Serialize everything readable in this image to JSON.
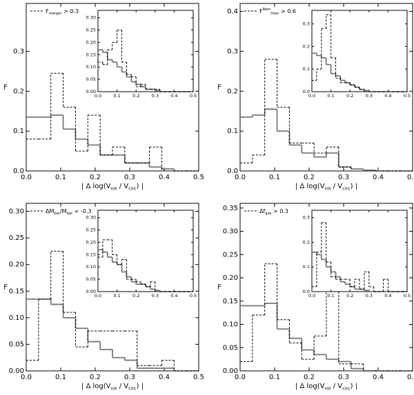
{
  "chart_data": [
    {
      "type": "histogram",
      "ylabel": "F",
      "xlabel": [
        {
          "text": "| Δ log(V"
        },
        {
          "text": "rot",
          "shift": "sub"
        },
        {
          "text": " / V"
        },
        {
          "text": "circ",
          "shift": "sub"
        },
        {
          "text": ") |"
        }
      ],
      "legend": [
        {
          "text": "F"
        },
        {
          "text": "merger",
          "shift": "sub"
        },
        {
          "text": " > 0.3"
        }
      ],
      "bins": [
        0,
        0.0357,
        0.0714,
        0.1071,
        0.1429,
        0.1786,
        0.2143,
        0.25,
        0.2857,
        0.3214,
        0.3571,
        0.3929,
        0.4286,
        0.4643,
        0.5
      ],
      "series": [
        {
          "color": "#777777",
          "dash": false,
          "values": [
            0.135,
            0.135,
            0.14,
            0.105,
            0.08,
            0.065,
            0.04,
            0.04,
            0.02,
            0.02,
            0.01,
            0.005,
            0,
            0
          ]
        },
        {
          "color": "#000000",
          "dash": true,
          "values": [
            0.08,
            0.08,
            0.245,
            0.16,
            0.05,
            0.14,
            0.04,
            0.06,
            0.02,
            0.02,
            0.06,
            0,
            0,
            0
          ]
        }
      ],
      "xlim": [
        0,
        0.5
      ],
      "ylim": [
        0,
        0.42
      ],
      "xticks": [
        {
          "value": 0,
          "label": "0.0"
        },
        0.1,
        0.2,
        0.3,
        0.4,
        0.5
      ],
      "yticks": [
        {
          "value": 0,
          "label": "0.0"
        },
        0.1,
        0.2,
        0.3
      ],
      "inset": {
        "bins": [
          0,
          0.025,
          0.05,
          0.075,
          0.1,
          0.125,
          0.15,
          0.175,
          0.2,
          0.225,
          0.25,
          0.275,
          0.3,
          0.325,
          0.35,
          0.375,
          0.4,
          0.425,
          0.45,
          0.475,
          0.5
        ],
        "series": [
          {
            "color": "#777777",
            "dash": false,
            "values": [
              0.17,
              0.16,
              0.13,
              0.12,
              0.1,
              0.08,
              0.06,
              0.04,
              0.03,
              0.02,
              0.01,
              0.01,
              0.005,
              0,
              0,
              0,
              0,
              0,
              0,
              0
            ]
          },
          {
            "color": "#000000",
            "dash": true,
            "values": [
              0.12,
              0.11,
              0.17,
              0.2,
              0.25,
              0.12,
              0.07,
              0.06,
              0.02,
              0.03,
              0.01,
              0.01,
              0.01,
              0,
              0,
              0,
              0,
              0,
              0,
              0
            ]
          }
        ],
        "xlim": [
          0,
          0.5
        ],
        "ylim": [
          0,
          0.33
        ],
        "xticks": [
          {
            "value": 0,
            "label": "0.0"
          },
          0.1,
          0.2,
          0.3,
          0.4,
          0.5
        ],
        "yticks": [
          {
            "value": 0,
            "label": "0.00"
          },
          0.05,
          {
            "value": 0.1,
            "label": "0.10"
          },
          0.15,
          {
            "value": 0.2,
            "label": "0.20"
          },
          0.25,
          {
            "value": 0.3,
            "label": "0.30"
          }
        ]
      }
    },
    {
      "type": "histogram",
      "ylabel": "F",
      "xlabel": [
        {
          "text": "| Δ log(V"
        },
        {
          "text": "rot",
          "shift": "sub"
        },
        {
          "text": " / V"
        },
        {
          "text": "circ",
          "shift": "sub"
        },
        {
          "text": ") |"
        }
      ],
      "legend": [
        {
          "text": "F"
        },
        {
          "text": "Rem",
          "shift": "sup"
        },
        {
          "text": "Inter",
          "shift": "sub"
        },
        {
          "text": " > 0.6"
        }
      ],
      "bins": [
        0,
        0.0357,
        0.0714,
        0.1071,
        0.1429,
        0.1786,
        0.2143,
        0.25,
        0.2857,
        0.3214,
        0.3571,
        0.3929,
        0.4286,
        0.4643,
        0.5
      ],
      "series": [
        {
          "color": "#777777",
          "dash": false,
          "values": [
            0.135,
            0.14,
            0.155,
            0.1,
            0.065,
            0.045,
            0.035,
            0.045,
            0.01,
            0.005,
            0.002,
            0,
            0,
            0
          ]
        },
        {
          "color": "#000000",
          "dash": true,
          "values": [
            0.02,
            0.04,
            0.28,
            0.16,
            0.07,
            0.07,
            0.045,
            0.06,
            0.01,
            0,
            0,
            0,
            0,
            0
          ]
        }
      ],
      "xlim": [
        0,
        0.5
      ],
      "ylim": [
        0,
        0.42
      ],
      "xticks": [
        {
          "value": 0,
          "label": "0.0"
        },
        0.1,
        0.2,
        0.3,
        0.4,
        0.5
      ],
      "yticks": [
        {
          "value": 0,
          "label": "0.0"
        },
        0.1,
        0.2,
        0.3,
        0.4
      ],
      "inset": {
        "bins": [
          0,
          0.025,
          0.05,
          0.075,
          0.1,
          0.125,
          0.15,
          0.175,
          0.2,
          0.225,
          0.25,
          0.275,
          0.3,
          0.325,
          0.35,
          0.375,
          0.4,
          0.425,
          0.45,
          0.475,
          0.5
        ],
        "series": [
          {
            "color": "#777777",
            "dash": false,
            "values": [
              0.17,
              0.16,
              0.15,
              0.12,
              0.08,
              0.07,
              0.05,
              0.04,
              0.03,
              0.02,
              0.01,
              0.005,
              0,
              0,
              0,
              0,
              0,
              0,
              0,
              0
            ]
          },
          {
            "color": "#000000",
            "dash": true,
            "values": [
              0.05,
              0.1,
              0.28,
              0.34,
              0.15,
              0.06,
              0.04,
              0.04,
              0.03,
              0.02,
              0.01,
              0,
              0,
              0,
              0,
              0,
              0,
              0,
              0,
              0
            ]
          }
        ],
        "xlim": [
          0,
          0.5
        ],
        "ylim": [
          0,
          0.36
        ],
        "xticks": [
          {
            "value": 0,
            "label": "0.0"
          },
          0.1,
          0.2,
          0.3,
          0.4,
          0.5
        ],
        "yticks": [
          {
            "value": 0,
            "label": "0.0"
          },
          0.1,
          0.2,
          0.3
        ]
      }
    },
    {
      "type": "histogram",
      "ylabel": "F",
      "xlabel": [
        {
          "text": "| Δ log(V"
        },
        {
          "text": "rot",
          "shift": "sub"
        },
        {
          "text": " / V"
        },
        {
          "text": "circ",
          "shift": "sub"
        },
        {
          "text": ") |"
        }
      ],
      "legend": [
        {
          "text": "ΔM"
        },
        {
          "text": "bar",
          "shift": "sub"
        },
        {
          "text": "/M"
        },
        {
          "text": "bar",
          "shift": "sub"
        },
        {
          "text": " < -0.3"
        }
      ],
      "bins": [
        0,
        0.0357,
        0.0714,
        0.1071,
        0.1429,
        0.1786,
        0.2143,
        0.25,
        0.2857,
        0.3214,
        0.3571,
        0.3929,
        0.4286,
        0.4643,
        0.5
      ],
      "series": [
        {
          "color": "#777777",
          "dash": false,
          "values": [
            0.135,
            0.135,
            0.125,
            0.1,
            0.08,
            0.055,
            0.04,
            0.025,
            0.02,
            0.005,
            0.005,
            0.005,
            0,
            0
          ]
        },
        {
          "color": "#000000",
          "dash": true,
          "values": [
            0.02,
            0.135,
            0.225,
            0.11,
            0.045,
            0.075,
            0.075,
            0.075,
            0.075,
            0.01,
            0.01,
            0.02,
            0,
            0
          ]
        }
      ],
      "xlim": [
        0,
        0.5
      ],
      "ylim": [
        0,
        0.315
      ],
      "xticks": [
        {
          "value": 0,
          "label": "0.0"
        },
        0.1,
        0.2,
        0.3,
        0.4,
        0.5
      ],
      "yticks": [
        {
          "value": 0,
          "label": "0.00"
        },
        0.05,
        {
          "value": 0.1,
          "label": "0.10"
        },
        0.15,
        {
          "value": 0.2,
          "label": "0.20"
        },
        0.25,
        {
          "value": 0.3,
          "label": "0.30"
        }
      ],
      "inset": {
        "bins": [
          0,
          0.025,
          0.05,
          0.075,
          0.1,
          0.125,
          0.15,
          0.175,
          0.2,
          0.225,
          0.25,
          0.275,
          0.3,
          0.325,
          0.35,
          0.375,
          0.4,
          0.425,
          0.45,
          0.475,
          0.5
        ],
        "series": [
          {
            "color": "#777777",
            "dash": false,
            "values": [
              0.17,
              0.16,
              0.14,
              0.12,
              0.11,
              0.08,
              0.06,
              0.04,
              0.03,
              0.03,
              0.02,
              0.01,
              0.005,
              0,
              0,
              0,
              0,
              0,
              0,
              0
            ]
          },
          {
            "color": "#000000",
            "dash": true,
            "values": [
              0.14,
              0.21,
              0.21,
              0.15,
              0.11,
              0.13,
              0.05,
              0.05,
              0.04,
              0.03,
              0.02,
              0.04,
              0,
              0,
              0,
              0,
              0,
              0,
              0,
              0
            ]
          }
        ],
        "xlim": [
          0,
          0.5
        ],
        "ylim": [
          0,
          0.33
        ],
        "xticks": [
          {
            "value": 0,
            "label": "0.0"
          },
          0.1,
          0.2,
          0.3,
          0.4,
          0.5
        ],
        "yticks": [
          {
            "value": 0,
            "label": "0.00"
          },
          0.05,
          {
            "value": 0.1,
            "label": "0.10"
          },
          0.15,
          {
            "value": 0.2,
            "label": "0.20"
          },
          0.25,
          {
            "value": 0.3,
            "label": "0.30"
          }
        ]
      }
    },
    {
      "type": "histogram",
      "ylabel": "F",
      "xlabel": [
        {
          "text": "| Δ log(V"
        },
        {
          "text": "rot",
          "shift": "sub"
        },
        {
          "text": " / V"
        },
        {
          "text": "circ",
          "shift": "sub"
        },
        {
          "text": ") |"
        }
      ],
      "legend": [
        {
          "text": "Δf"
        },
        {
          "text": "gas",
          "shift": "sub"
        },
        {
          "text": " > 0.3"
        }
      ],
      "bins": [
        0,
        0.0357,
        0.0714,
        0.1071,
        0.1429,
        0.1786,
        0.2143,
        0.25,
        0.2857,
        0.3214,
        0.3571,
        0.3929,
        0.4286,
        0.4643,
        0.5
      ],
      "series": [
        {
          "color": "#777777",
          "dash": false,
          "values": [
            0.14,
            0.14,
            0.145,
            0.09,
            0.07,
            0.045,
            0.035,
            0.025,
            0.02,
            0.005,
            0,
            0,
            0,
            0
          ]
        },
        {
          "color": "#000000",
          "dash": true,
          "values": [
            0.02,
            0.12,
            0.23,
            0.11,
            0.06,
            0.025,
            0.075,
            0.2,
            0.015,
            0.015,
            0,
            0,
            0,
            0
          ]
        }
      ],
      "xlim": [
        0,
        0.5
      ],
      "ylim": [
        0,
        0.36
      ],
      "xticks": [
        {
          "value": 0,
          "label": "0.0"
        },
        0.1,
        0.2,
        0.3,
        0.4,
        0.5
      ],
      "yticks": [
        {
          "value": 0,
          "label": "0.00"
        },
        0.05,
        {
          "value": 0.1,
          "label": "0.10"
        },
        0.15,
        {
          "value": 0.2,
          "label": "0.20"
        },
        0.25,
        {
          "value": 0.3,
          "label": "0.30"
        },
        0.35
      ],
      "inset": {
        "bins": [
          0,
          0.025,
          0.05,
          0.075,
          0.1,
          0.125,
          0.15,
          0.175,
          0.2,
          0.225,
          0.25,
          0.275,
          0.3,
          0.325,
          0.35,
          0.375,
          0.4,
          0.425,
          0.45,
          0.475,
          0.5
        ],
        "series": [
          {
            "color": "#777777",
            "dash": false,
            "values": [
              0.16,
              0.15,
              0.13,
              0.1,
              0.08,
              0.06,
              0.04,
              0.03,
              0.02,
              0.01,
              0.01,
              0.005,
              0,
              0,
              0,
              0,
              0,
              0,
              0,
              0
            ]
          },
          {
            "color": "#000000",
            "dash": true,
            "values": [
              0.02,
              0.16,
              0.28,
              0.12,
              0.06,
              0.05,
              0.05,
              0.05,
              0.02,
              0.05,
              0.01,
              0.08,
              0.02,
              0,
              0,
              0.05,
              0,
              0,
              0,
              0
            ]
          }
        ],
        "xlim": [
          0,
          0.5
        ],
        "ylim": [
          0,
          0.33
        ],
        "xticks": [
          {
            "value": 0,
            "label": "0.0"
          },
          0.1,
          0.2,
          0.3,
          0.4,
          0.5
        ],
        "yticks": [
          {
            "value": 0,
            "label": "0.0"
          },
          0.1,
          0.2,
          0.3
        ]
      }
    }
  ]
}
